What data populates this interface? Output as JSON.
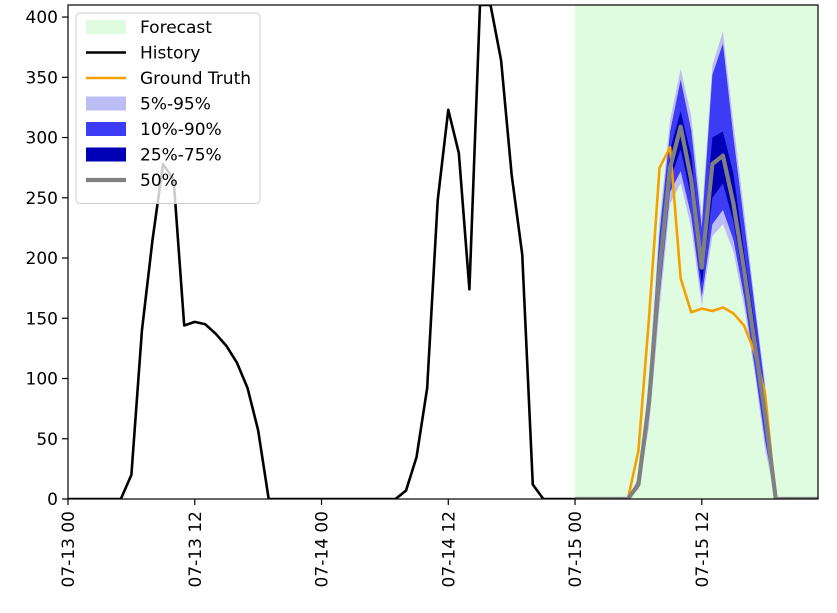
{
  "chart_data": {
    "type": "line",
    "title": "",
    "xlabel": "",
    "ylabel": "",
    "x_start": "07-13 00",
    "x_step_hours": 1,
    "xlim_hours": [
      0,
      71
    ],
    "ylim": [
      0,
      410
    ],
    "y_ticks": [
      0,
      50,
      100,
      150,
      200,
      250,
      300,
      350,
      400
    ],
    "x_ticks": [
      {
        "hour": 0,
        "label": "07-13 00"
      },
      {
        "hour": 12,
        "label": "07-13 12"
      },
      {
        "hour": 24,
        "label": "07-14 00"
      },
      {
        "hour": 36,
        "label": "07-14 12"
      },
      {
        "hour": 48,
        "label": "07-15 00"
      },
      {
        "hour": 60,
        "label": "07-15 12"
      }
    ],
    "forecast_region_hours": [
      48,
      71
    ],
    "legend_position": "upper-left",
    "legend": [
      {
        "label": "Forecast",
        "color": "#e0fce0",
        "kind": "patch"
      },
      {
        "label": "History",
        "color": "#000000",
        "kind": "line"
      },
      {
        "label": "Ground Truth",
        "color": "#f5a000",
        "kind": "line"
      },
      {
        "label": "5%-95%",
        "color": "#bdbdf5",
        "kind": "patch"
      },
      {
        "label": "10%-90%",
        "color": "#3c3cf5",
        "kind": "patch"
      },
      {
        "label": "25%-75%",
        "color": "#0000b4",
        "kind": "patch"
      },
      {
        "label": "50%",
        "color": "#808080",
        "kind": "line"
      }
    ],
    "series": [
      {
        "name": "History",
        "color": "#000000",
        "x_start_hour": 0,
        "values": [
          0,
          0,
          0,
          0,
          0,
          0,
          20,
          140,
          215,
          278,
          265,
          144,
          147,
          145,
          137,
          127,
          113,
          92,
          57,
          0,
          0,
          0,
          0,
          0,
          0,
          0,
          0,
          0,
          0,
          0,
          0,
          0,
          7,
          35,
          92,
          248,
          323,
          287,
          174,
          410,
          410,
          364,
          269,
          203,
          12,
          0,
          0,
          0,
          0
        ]
      },
      {
        "name": "Ground Truth",
        "color": "#f5a000",
        "x_start_hour": 48,
        "values": [
          0,
          0,
          0,
          0,
          0,
          0,
          40,
          150,
          275,
          292,
          183,
          155,
          158,
          156,
          159,
          154,
          144,
          122,
          87,
          0,
          0,
          0,
          0,
          0
        ]
      },
      {
        "name": "50%",
        "color": "#808080",
        "x_start_hour": 48,
        "values": [
          0,
          0,
          0,
          0,
          0,
          0,
          12,
          80,
          190,
          275,
          309,
          265,
          192,
          278,
          285,
          245,
          190,
          130,
          70,
          0,
          0,
          0,
          0,
          0
        ]
      }
    ],
    "bands": [
      {
        "name": "5%-95%",
        "color": "#bdbdf5",
        "x_start_hour": 48,
        "lower": [
          0,
          0,
          0,
          0,
          0,
          0,
          8,
          60,
          158,
          245,
          262,
          225,
          160,
          218,
          228,
          205,
          160,
          105,
          40,
          0,
          0,
          0,
          0,
          0
        ],
        "upper": [
          0,
          0,
          0,
          0,
          0,
          0,
          18,
          100,
          230,
          315,
          357,
          318,
          235,
          360,
          388,
          312,
          240,
          165,
          96,
          0,
          0,
          0,
          0,
          0
        ]
      },
      {
        "name": "10%-90%",
        "color": "#3c3cf5",
        "x_start_hour": 48,
        "lower": [
          0,
          0,
          0,
          0,
          0,
          0,
          9,
          68,
          168,
          255,
          272,
          235,
          168,
          228,
          240,
          215,
          168,
          110,
          48,
          0,
          0,
          0,
          0,
          0
        ],
        "upper": [
          0,
          0,
          0,
          0,
          0,
          0,
          16,
          95,
          220,
          305,
          348,
          306,
          225,
          352,
          378,
          300,
          230,
          160,
          90,
          0,
          0,
          0,
          0,
          0
        ]
      },
      {
        "name": "25%-75%",
        "color": "#0000b4",
        "x_start_hour": 48,
        "lower": [
          0,
          0,
          0,
          0,
          0,
          0,
          10,
          75,
          180,
          265,
          290,
          250,
          178,
          250,
          262,
          230,
          178,
          120,
          58,
          0,
          0,
          0,
          0,
          0
        ],
        "upper": [
          0,
          0,
          0,
          0,
          0,
          0,
          14,
          88,
          205,
          290,
          322,
          285,
          205,
          300,
          305,
          270,
          205,
          145,
          78,
          0,
          0,
          0,
          0,
          0
        ]
      }
    ]
  }
}
